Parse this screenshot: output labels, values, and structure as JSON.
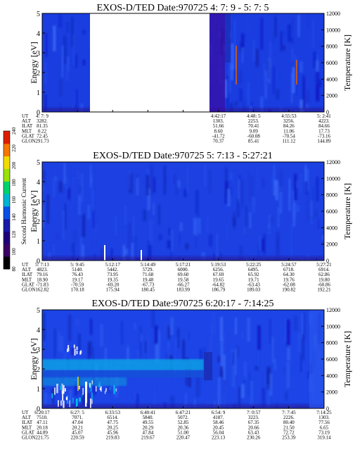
{
  "panels": [
    {
      "title": "EXOS-D/TED   Date:970725  4: 7: 9 - 5: 7: 5",
      "ylabel_left": "Energy [eV]",
      "ylabel_right": "Temperature [K]",
      "yticks_left": [
        "0",
        "1",
        "2",
        "3",
        "4",
        "5"
      ],
      "yticks_right": [
        "0",
        "2000",
        "4000",
        "6000",
        "8000",
        "10000",
        "12000"
      ],
      "orbit_labels": [
        "UT",
        "ALT",
        "ILAT",
        "MLT",
        "GLAT",
        "GLON"
      ],
      "orbit_columns": [
        {
          "col": 0,
          "values": [
            "4: 7: 9",
            "3282.",
            "81.35",
            "0.22",
            "72.45",
            "291.73"
          ]
        },
        {
          "col": 5,
          "values": [
            "4:42:17",
            "1303.",
            "51.66",
            "8.60",
            "-41.72",
            "70.37"
          ]
        },
        {
          "col": 6,
          "values": [
            "4:48: 5",
            "2253.",
            "70.41",
            "9.09",
            "-60.08",
            "85.41"
          ]
        },
        {
          "col": 7,
          "values": [
            "4:55:53",
            "3256.",
            "84.26",
            "11.06",
            "-70.54",
            "111.12"
          ]
        },
        {
          "col": 8,
          "values": [
            "5: 2:41",
            "4223.",
            "84.66",
            "17.73",
            "-73.16",
            "144.89"
          ]
        }
      ],
      "data_gap": [
        0.17,
        0.66
      ]
    },
    {
      "title": "EXOS-D/TED   Date:970725  5: 7:13 - 5:27:21",
      "ylabel_left": "Energy [eV]",
      "ylabel_right": "Temperature [K]",
      "yticks_left": [
        "0",
        "1",
        "2",
        "3",
        "4",
        "5"
      ],
      "yticks_right": [
        "0",
        "2000",
        "4000",
        "6000",
        "8000",
        "10000",
        "12000"
      ],
      "orbit_labels": [
        "ALT",
        "ILAT",
        "MLT",
        "GLAT",
        "GLON"
      ],
      "ut_row": [
        "5: 7:13",
        "5: 9:45",
        "5:12:17",
        "5:14:49",
        "5:17:21",
        "5:19:53",
        "5:22:25",
        "5:24:57",
        "5:27:21"
      ],
      "orbit_columns": [
        {
          "col": 0,
          "values": [
            "4823.",
            "79.16",
            "18.90",
            "-71.83",
            "162.82"
          ]
        },
        {
          "col": 1,
          "values": [
            "5140.",
            "76.43",
            "19.17",
            "-70.59",
            "170.18"
          ]
        },
        {
          "col": 2,
          "values": [
            "5442.",
            "73.95",
            "19.35",
            "-69.20",
            "175.94"
          ]
        },
        {
          "col": 3,
          "values": [
            "5729.",
            "71.68",
            "19.48",
            "-67.73",
            "180.45"
          ]
        },
        {
          "col": 4,
          "values": [
            "6000.",
            "69.60",
            "19.58",
            "-66.27",
            "183.99"
          ]
        },
        {
          "col": 5,
          "values": [
            "6256.",
            "67.69",
            "19.65",
            "-64.82",
            "186.79"
          ]
        },
        {
          "col": 6,
          "values": [
            "6495.",
            "65.92",
            "19.71",
            "-63.43",
            "189.03"
          ]
        },
        {
          "col": 7,
          "values": [
            "6718.",
            "64.30",
            "19.76",
            "-62.08",
            "190.82"
          ]
        },
        {
          "col": 8,
          "values": [
            "6914.",
            "62.86",
            "19.80",
            "-60.86",
            "192.21"
          ]
        }
      ]
    },
    {
      "title": "EXOS-D/TED   Date:970725  6:20:17 - 7:14:25",
      "ylabel_left": "Energy [eV]",
      "ylabel_right": "Temperature [K]",
      "yticks_left": [
        "0",
        "1",
        "2",
        "3",
        "4",
        "5"
      ],
      "yticks_right": [
        "0",
        "2000",
        "4000",
        "6000",
        "8000",
        "10000",
        "12000"
      ],
      "orbit_labels": [
        "UT",
        "ALT",
        "ILAT",
        "MLT",
        "GLAT",
        "GLON"
      ],
      "orbit_columns": [
        {
          "col": 0,
          "values": [
            "6:20:17",
            "7510.",
            "47.11",
            "20.18",
            "44.89",
            "221.75"
          ]
        },
        {
          "col": 1,
          "values": [
            "6:27: 5",
            "7071.",
            "47.04",
            "20.21",
            "45.07",
            "220.59"
          ]
        },
        {
          "col": 2,
          "values": [
            "6:33:53",
            "6514.",
            "47.75",
            "20.25",
            "45.96",
            "219.83"
          ]
        },
        {
          "col": 3,
          "values": [
            "6:40:41",
            "5840.",
            "49.55",
            "20.29",
            "47.84",
            "219.67"
          ]
        },
        {
          "col": 4,
          "values": [
            "6:47:21",
            "5072.",
            "52.85",
            "20.36",
            "51.00",
            "220.47"
          ]
        },
        {
          "col": 5,
          "values": [
            "6:54: 9",
            "4187.",
            "58.46",
            "20.45",
            "56.04",
            "223.13"
          ]
        },
        {
          "col": 6,
          "values": [
            "7: 0:57",
            "3223.",
            "67.35",
            "20.66",
            "63.43",
            "230.26"
          ]
        },
        {
          "col": 7,
          "values": [
            "7: 7:45",
            "2226.",
            "80.40",
            "21.50",
            "72.72",
            "253.39"
          ]
        },
        {
          "col": 8,
          "values": [
            "7:14:25",
            "1303.",
            "77.56",
            "6.65",
            "73.19",
            "319.14"
          ]
        }
      ]
    }
  ],
  "colorbar": {
    "label": "Second Harmonic Current",
    "ticks": [
      "80",
      "100",
      "120",
      "140",
      "160",
      "180",
      "200",
      "220",
      "240"
    ],
    "colors": [
      "#000000",
      "#3a0063",
      "#20007a",
      "#1a1aa8",
      "#0a50e6",
      "#00b4d2",
      "#00d26e",
      "#9be10a",
      "#f0dc00",
      "#f57800",
      "#dc1e00"
    ]
  },
  "chart_data": [
    {
      "type": "heatmap",
      "title": "EXOS-D/TED   Date:970725  4: 7: 9 - 5: 7: 5",
      "xlabel": "UT",
      "ylabel": "Energy [eV]",
      "y2label": "Temperature [K]",
      "ylim": [
        0,
        5
      ],
      "y2lim": [
        0,
        12000
      ],
      "x_ticks": [
        "4: 7: 9",
        "4:42:17",
        "4:48: 5",
        "4:55:53",
        "5: 2:41"
      ],
      "colorbar_range": [
        80,
        240
      ],
      "no_data_interval": [
        "4: 7: 9 + gap",
        "4:42:17"
      ],
      "temperature_traces": [
        {
          "at": "approx 4:52",
          "range": [
            5200,
            7200
          ],
          "color": "#e06000"
        },
        {
          "at": "approx 5: 1",
          "range": [
            4400,
            6000
          ],
          "color": "#e06000"
        }
      ]
    },
    {
      "type": "heatmap",
      "title": "EXOS-D/TED   Date:970725  5: 7:13 - 5:27:21",
      "xlabel": "UT",
      "ylabel": "Energy [eV]",
      "y2label": "Temperature [K]",
      "ylim": [
        0,
        5
      ],
      "y2lim": [
        0,
        12000
      ],
      "x_ticks": [
        "5: 7:13",
        "5: 9:45",
        "5:12:17",
        "5:14:49",
        "5:17:21",
        "5:19:53",
        "5:22:25",
        "5:24:57",
        "5:27:21"
      ],
      "colorbar_range": [
        80,
        240
      ],
      "spikes": [
        {
          "at": "approx 5:11",
          "energy": [
            0,
            0.7
          ],
          "color": "#ffffff"
        },
        {
          "at": "approx 5:14",
          "energy": [
            0,
            0.4
          ],
          "color": "#ffffff"
        }
      ]
    },
    {
      "type": "heatmap",
      "title": "EXOS-D/TED   Date:970725  6:20:17 - 7:14:25",
      "xlabel": "UT",
      "ylabel": "Energy [eV]",
      "y2label": "Temperature [K]",
      "ylim": [
        0,
        5
      ],
      "y2lim": [
        0,
        12000
      ],
      "x_ticks": [
        "6:20:17",
        "6:27: 5",
        "6:33:53",
        "6:40:41",
        "6:47:21",
        "6:54: 9",
        "7: 0:57",
        "7: 7:45",
        "7:14:25"
      ],
      "colorbar_range": [
        80,
        240
      ],
      "bands": [
        {
          "energy_center": 1.9,
          "energy_width": 0.4,
          "until": "approx 6:47",
          "color": "#00a0e0"
        },
        {
          "energy_center": 1.3,
          "energy_width": 0.35,
          "until": "approx 6:47",
          "color": "#00a0e0"
        }
      ]
    }
  ]
}
